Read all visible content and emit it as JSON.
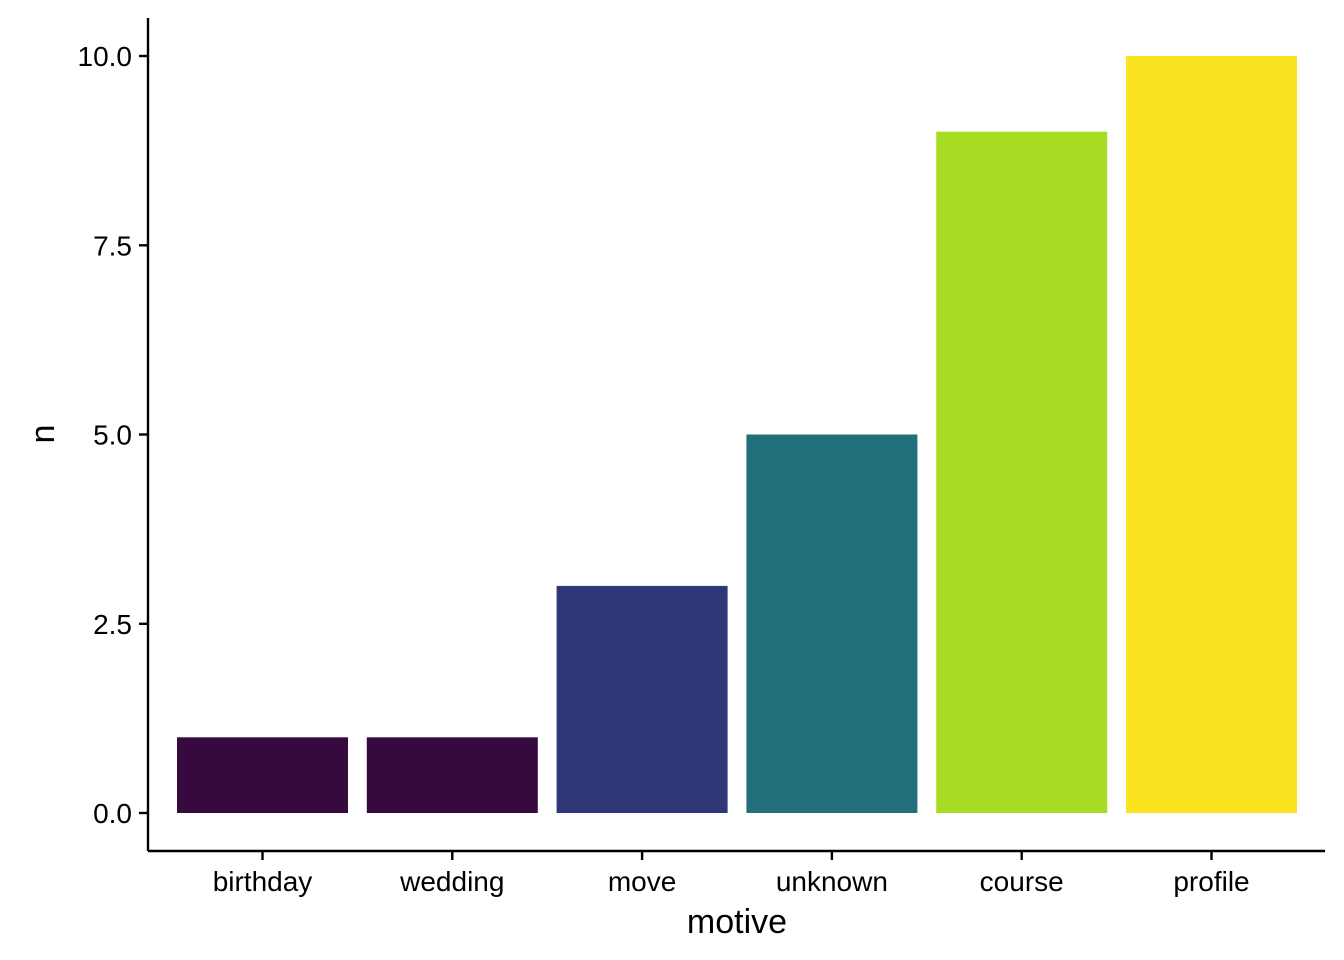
{
  "chart_data": {
    "type": "bar",
    "categories": [
      "birthday",
      "wedding",
      "move",
      "unknown",
      "course",
      "profile"
    ],
    "values": [
      1,
      1,
      3,
      5,
      9,
      10
    ],
    "colors": [
      "#360a3e",
      "#360a3e",
      "#303776",
      "#22707c",
      "#a8dc22",
      "#fae21f"
    ],
    "title": "",
    "xlabel": "motive",
    "ylabel": "n",
    "ylim": [
      0,
      10
    ],
    "yticks": [
      0,
      2.5,
      5,
      7.5,
      10
    ],
    "ytick_labels": [
      "0.0",
      "2.5",
      "5.0",
      "7.5",
      "10.0"
    ],
    "grid": false,
    "legend": "none"
  }
}
